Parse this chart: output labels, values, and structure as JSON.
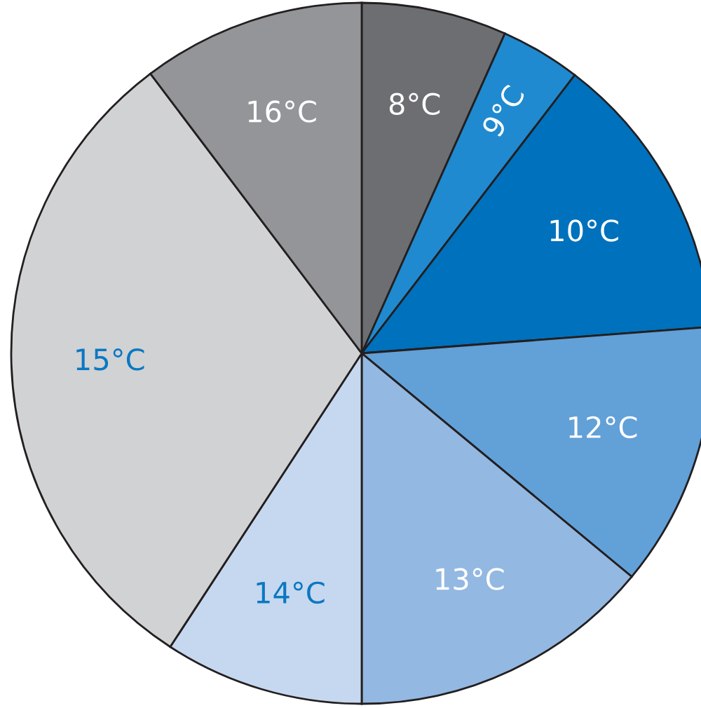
{
  "chart_data": {
    "type": "pie",
    "categories": [
      "8°C",
      "9°C",
      "10°C",
      "12°C",
      "13°C",
      "14°C",
      "15°C",
      "16°C"
    ],
    "values": [
      6.7,
      3.7,
      13.4,
      12.2,
      14.0,
      9.2,
      30.5,
      10.3
    ],
    "colors": [
      "#6d6e71",
      "#1f8ad0",
      "#0071bc",
      "#62a0d8",
      "#93b8e2",
      "#c6d8ef",
      "#d1d2d4",
      "#939598"
    ]
  }
}
